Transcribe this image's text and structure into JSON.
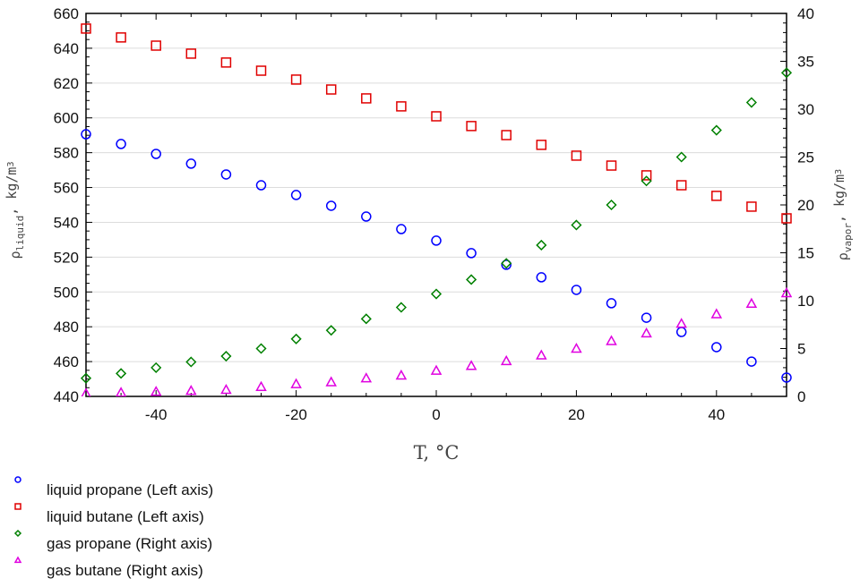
{
  "chart_data": {
    "type": "scatter",
    "xlabel": "T, °C",
    "ylabel_left": {
      "main": "ρ",
      "sub": "liquid",
      "unit": ", kg/m",
      "sup": "3"
    },
    "ylabel_right": {
      "main": "ρ",
      "sub": "vapor",
      "unit": ", kg/m",
      "sup": "3"
    },
    "xlim": [
      -50,
      50
    ],
    "ylim_left": [
      440,
      660
    ],
    "ylim_right": [
      0,
      40
    ],
    "x_ticks": [
      "-40",
      "-20",
      "0",
      "20",
      "40"
    ],
    "y_left_ticks": [
      "440",
      "460",
      "480",
      "500",
      "520",
      "540",
      "560",
      "580",
      "600",
      "620",
      "640",
      "660"
    ],
    "y_right_ticks": [
      "0",
      "5",
      "10",
      "15",
      "20",
      "25",
      "30",
      "35",
      "40"
    ],
    "grid": "horizontal at left-axis major ticks",
    "legend_placement": "bottom-left, below plot",
    "x": [
      -50,
      -45,
      -40,
      -35,
      -30,
      -25,
      -20,
      -15,
      -10,
      -5,
      0,
      5,
      10,
      15,
      20,
      25,
      30,
      35,
      40,
      45,
      50
    ],
    "series": [
      {
        "name": "liquid propane (Left axis)",
        "axis": "left",
        "marker": "circle",
        "color": "#0000ff",
        "values": [
          590.6,
          585,
          579.3,
          573.7,
          567.5,
          561.3,
          555.7,
          549.5,
          543.3,
          536.1,
          529.5,
          522.3,
          515.6,
          508.4,
          501.2,
          493.5,
          485.2,
          477,
          468.3,
          460,
          450.8
        ]
      },
      {
        "name": "liquid butane (Left axis)",
        "axis": "left",
        "marker": "square",
        "color": "#e00000",
        "values": [
          651.3,
          646.2,
          641.5,
          636.9,
          631.8,
          627.1,
          622,
          616.3,
          611.2,
          606.6,
          600.9,
          595.3,
          590.1,
          584.5,
          578.3,
          572.6,
          567,
          561.3,
          555.2,
          549,
          542.3
        ]
      },
      {
        "name": "gas propane (Right axis)",
        "axis": "right",
        "marker": "diamond",
        "color": "#008000",
        "values": [
          1.9,
          2.4,
          3.0,
          3.6,
          4.2,
          5.0,
          6.0,
          6.9,
          8.1,
          9.3,
          10.7,
          12.2,
          13.9,
          15.8,
          17.9,
          20,
          22.5,
          25,
          27.8,
          30.7,
          33.8
        ]
      },
      {
        "name": "gas butane (Right axis)",
        "axis": "right",
        "marker": "triangle",
        "color": "#e000e0",
        "values": [
          0.3,
          0.4,
          0.5,
          0.6,
          0.7,
          1.0,
          1.3,
          1.5,
          1.9,
          2.2,
          2.7,
          3.2,
          3.7,
          4.3,
          5.0,
          5.8,
          6.6,
          7.6,
          8.6,
          9.7,
          10.8
        ]
      }
    ]
  }
}
